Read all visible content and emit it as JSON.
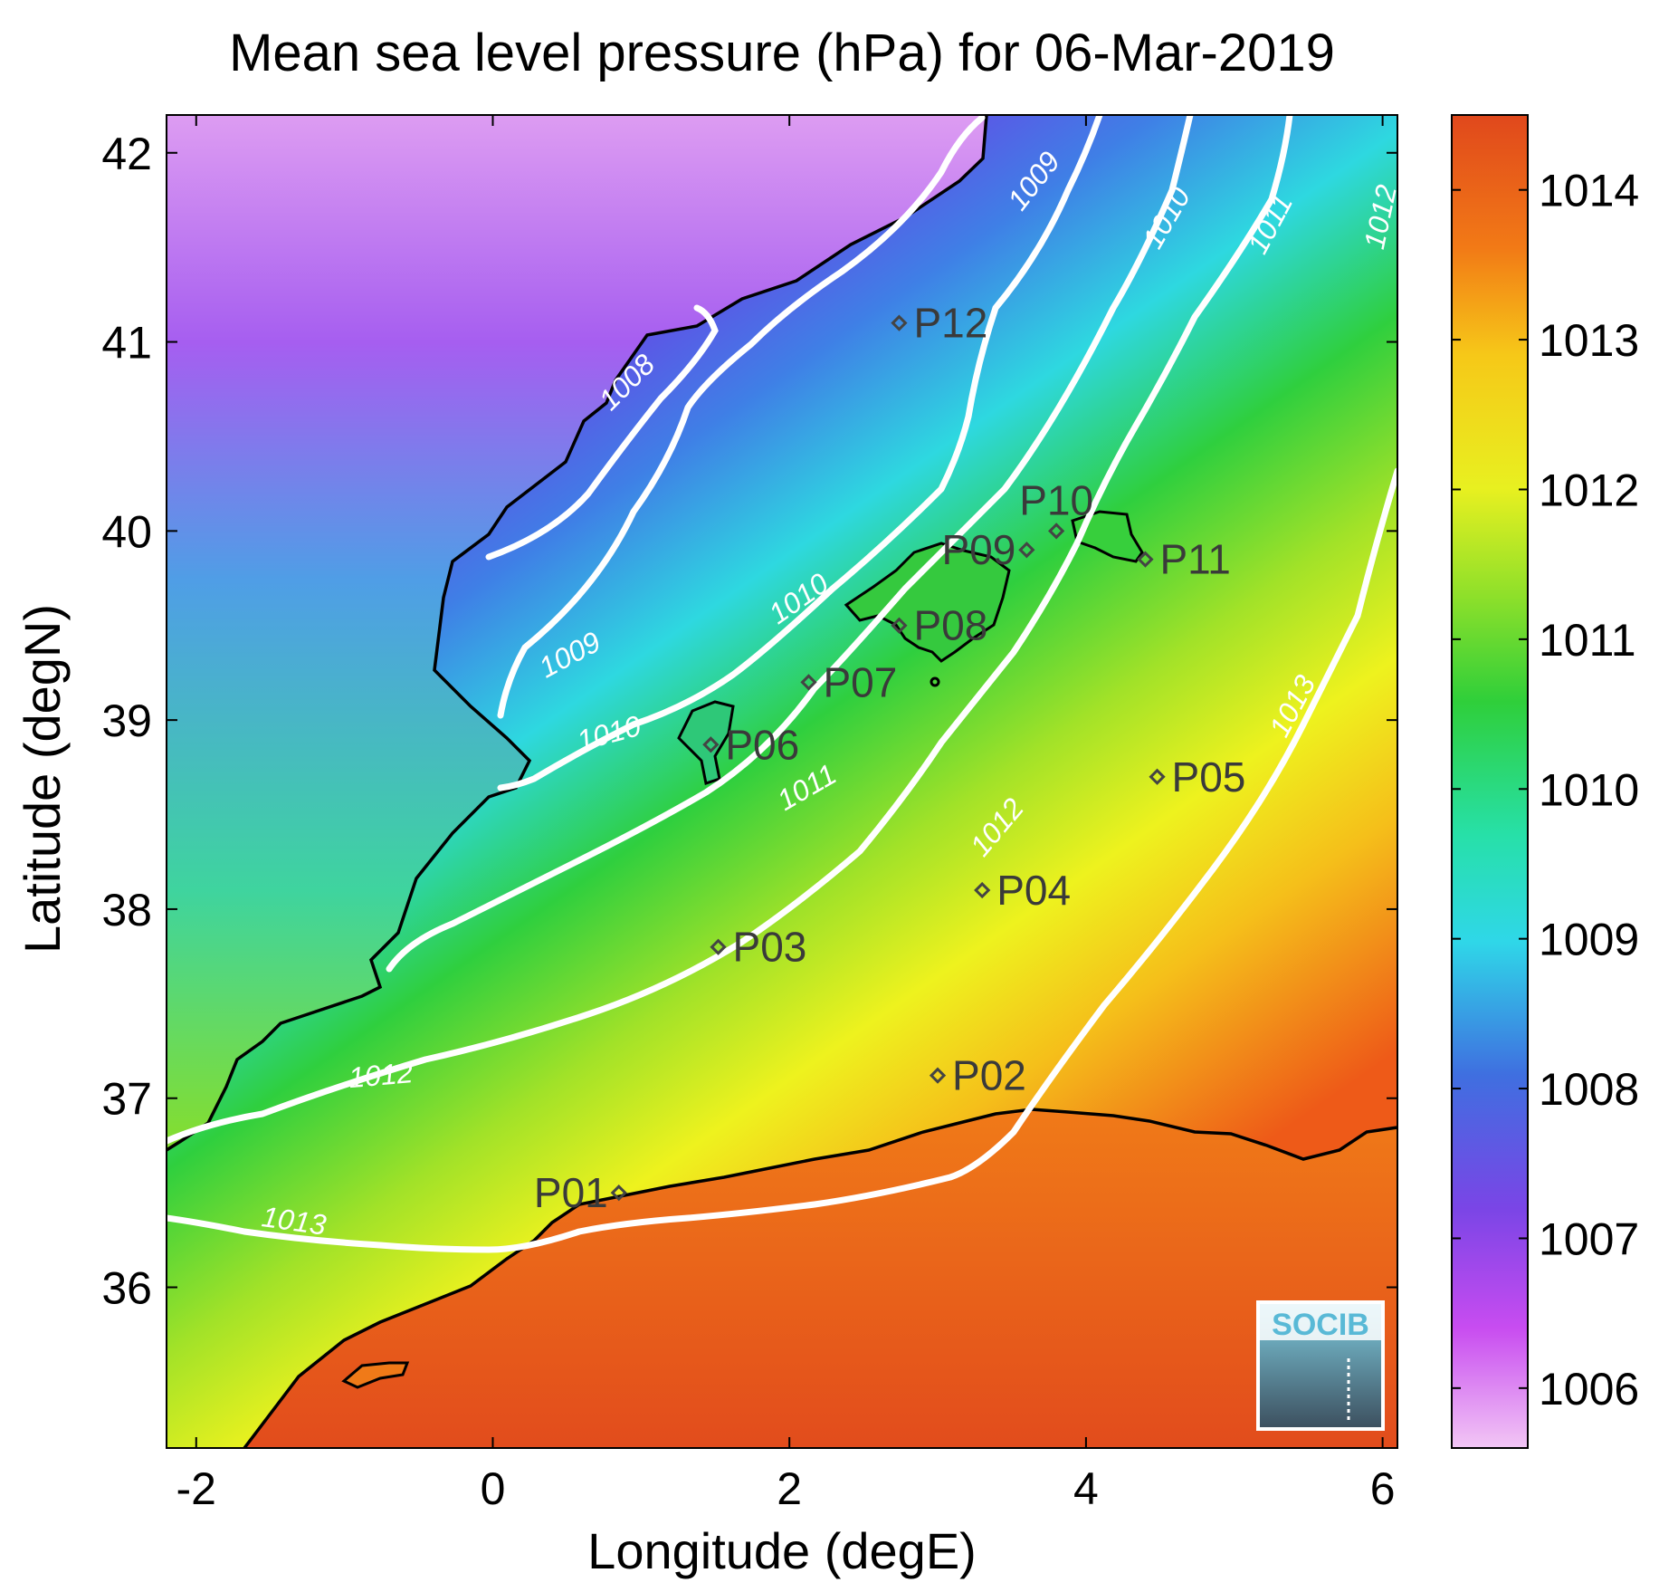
{
  "title": "Mean sea level pressure (hPa) for 06-Mar-2019",
  "xlabel": "Longitude (degE)",
  "ylabel": "Latitude (degN)",
  "xlim": [
    -2.2,
    6.1
  ],
  "ylim": [
    35.15,
    42.2
  ],
  "xticks": [
    "-2",
    "0",
    "2",
    "4",
    "6"
  ],
  "yticks": [
    "36",
    "37",
    "38",
    "39",
    "40",
    "41",
    "42"
  ],
  "colorbar": {
    "range": [
      1005.6,
      1014.5
    ],
    "ticks": [
      "1006",
      "1007",
      "1008",
      "1009",
      "1010",
      "1011",
      "1012",
      "1013",
      "1014"
    ],
    "colormap": [
      "#f2c6f5",
      "#c84cf0",
      "#7a45e6",
      "#3f6fe0",
      "#2fd7e8",
      "#27e0a8",
      "#2fcf3a",
      "#8fe02a",
      "#e8f020",
      "#f6c818",
      "#f27a16",
      "#e0481c"
    ]
  },
  "contour_labels": [
    {
      "text": "1008",
      "lon": 0.95,
      "lat": 40.75,
      "rot": -45
    },
    {
      "text": "1009",
      "lon": 3.7,
      "lat": 41.82,
      "rot": -52
    },
    {
      "text": "1009",
      "lon": 0.55,
      "lat": 39.3,
      "rot": -28
    },
    {
      "text": "1010",
      "lon": 4.6,
      "lat": 41.63,
      "rot": -60
    },
    {
      "text": "1010",
      "lon": 2.1,
      "lat": 39.6,
      "rot": -35
    },
    {
      "text": "1010",
      "lon": 0.8,
      "lat": 38.88,
      "rot": -15
    },
    {
      "text": "1011",
      "lon": 5.3,
      "lat": 41.6,
      "rot": -62
    },
    {
      "text": "1011",
      "lon": 2.15,
      "lat": 38.6,
      "rot": -30
    },
    {
      "text": "1012",
      "lon": 6.05,
      "lat": 41.65,
      "rot": -78
    },
    {
      "text": "1012",
      "lon": 3.45,
      "lat": 38.4,
      "rot": -50
    },
    {
      "text": "1012",
      "lon": -0.75,
      "lat": 37.07,
      "rot": -5
    },
    {
      "text": "1013",
      "lon": 5.45,
      "lat": 39.05,
      "rot": -62
    },
    {
      "text": "1013",
      "lon": -1.35,
      "lat": 36.3,
      "rot": 8
    }
  ],
  "points": [
    {
      "name": "P01",
      "lon": 0.85,
      "lat": 36.5,
      "label_side": "left"
    },
    {
      "name": "P02",
      "lon": 3.0,
      "lat": 37.12,
      "label_side": "right"
    },
    {
      "name": "P03",
      "lon": 1.52,
      "lat": 37.8,
      "label_side": "right"
    },
    {
      "name": "P04",
      "lon": 3.3,
      "lat": 38.1,
      "label_side": "right"
    },
    {
      "name": "P05",
      "lon": 4.48,
      "lat": 38.7,
      "label_side": "right"
    },
    {
      "name": "P06",
      "lon": 1.47,
      "lat": 38.87,
      "label_side": "right"
    },
    {
      "name": "P07",
      "lon": 2.13,
      "lat": 39.2,
      "label_side": "right"
    },
    {
      "name": "P08",
      "lon": 2.74,
      "lat": 39.5,
      "label_side": "right"
    },
    {
      "name": "P09",
      "lon": 3.6,
      "lat": 39.9,
      "label_side": "left"
    },
    {
      "name": "P10",
      "lon": 3.8,
      "lat": 40.0,
      "label_side": "above"
    },
    {
      "name": "P11",
      "lon": 4.4,
      "lat": 39.85,
      "label_side": "right"
    },
    {
      "name": "P12",
      "lon": 2.74,
      "lat": 41.1,
      "label_side": "right"
    }
  ],
  "logo": {
    "text": "SOCIB"
  }
}
